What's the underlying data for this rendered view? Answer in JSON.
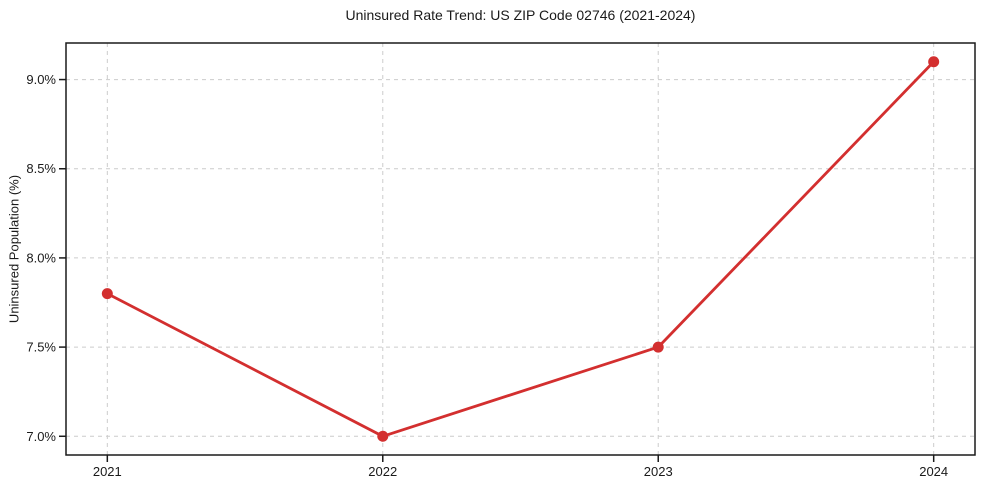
{
  "chart_data": {
    "type": "line",
    "title": "Uninsured Rate Trend: US ZIP Code 02746 (2021-2024)",
    "xlabel": "",
    "ylabel": "Uninsured Population (%)",
    "x": [
      2021,
      2022,
      2023,
      2024
    ],
    "x_tick_labels": [
      "2021",
      "2022",
      "2023",
      "2024"
    ],
    "values": [
      7.8,
      7.0,
      7.5,
      9.1
    ],
    "y_ticks": [
      7.0,
      7.5,
      8.0,
      8.5,
      9.0
    ],
    "y_tick_labels": [
      "7.0%",
      "7.5%",
      "8.0%",
      "8.5%",
      "9.0%"
    ],
    "xlim": [
      2020.85,
      2024.15
    ],
    "ylim": [
      6.895,
      9.205
    ],
    "grid": true,
    "grid_style": "dashed",
    "legend": "none",
    "marker": "circle"
  },
  "colors": {
    "line": "#d32f2f",
    "marker": "#d32f2f",
    "grid": "#cccccc",
    "text": "#1a1a1a",
    "spine": "#1a1a1a",
    "background": "#ffffff"
  }
}
